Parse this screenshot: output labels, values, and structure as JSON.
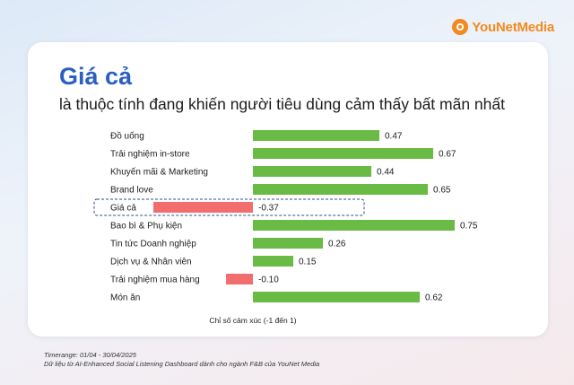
{
  "brand": {
    "logo_text": "YouNetMedia",
    "logo_color": "#f28a1e"
  },
  "heading": {
    "title": "Giá cả",
    "subtitle": "là thuộc tính đang khiến người tiêu dùng cảm thấy bất mãn nhất",
    "title_color": "#2a5fc2"
  },
  "chart_data": {
    "type": "bar",
    "orientation": "horizontal",
    "categories": [
      "Đồ uống",
      "Trải nghiệm in-store",
      "Khuyến mãi & Marketing",
      "Brand love",
      "Giá cả",
      "Bao bì & Phụ kiện",
      "Tin tức Doanh nghiệp",
      "Dịch vụ & Nhân viên",
      "Trải nghiệm mua hàng",
      "Món ăn"
    ],
    "values": [
      0.47,
      0.67,
      0.44,
      0.65,
      -0.37,
      0.75,
      0.26,
      0.15,
      -0.1,
      0.62
    ],
    "value_labels": [
      "0.47",
      "0.67",
      "0.44",
      "0.65",
      "-0.37",
      "0.75",
      "0.26",
      "0.15",
      "-0.10",
      "0.62"
    ],
    "xlabel": "Chỉ số cảm xúc (-1 đến 1)",
    "xlim": [
      -1,
      1
    ],
    "grid": false,
    "highlighted_category": "Giá cả",
    "colors": {
      "positive": "#6abb45",
      "negative": "#f26e6e",
      "highlight_border": "#2e4a8c"
    }
  },
  "footer": {
    "timerange": "Timerange: 01/04 - 30/04/2025",
    "source": "Dữ liệu từ AI-Enhanced Social Listening Dashboard dành cho ngành F&B của YouNet Media"
  }
}
